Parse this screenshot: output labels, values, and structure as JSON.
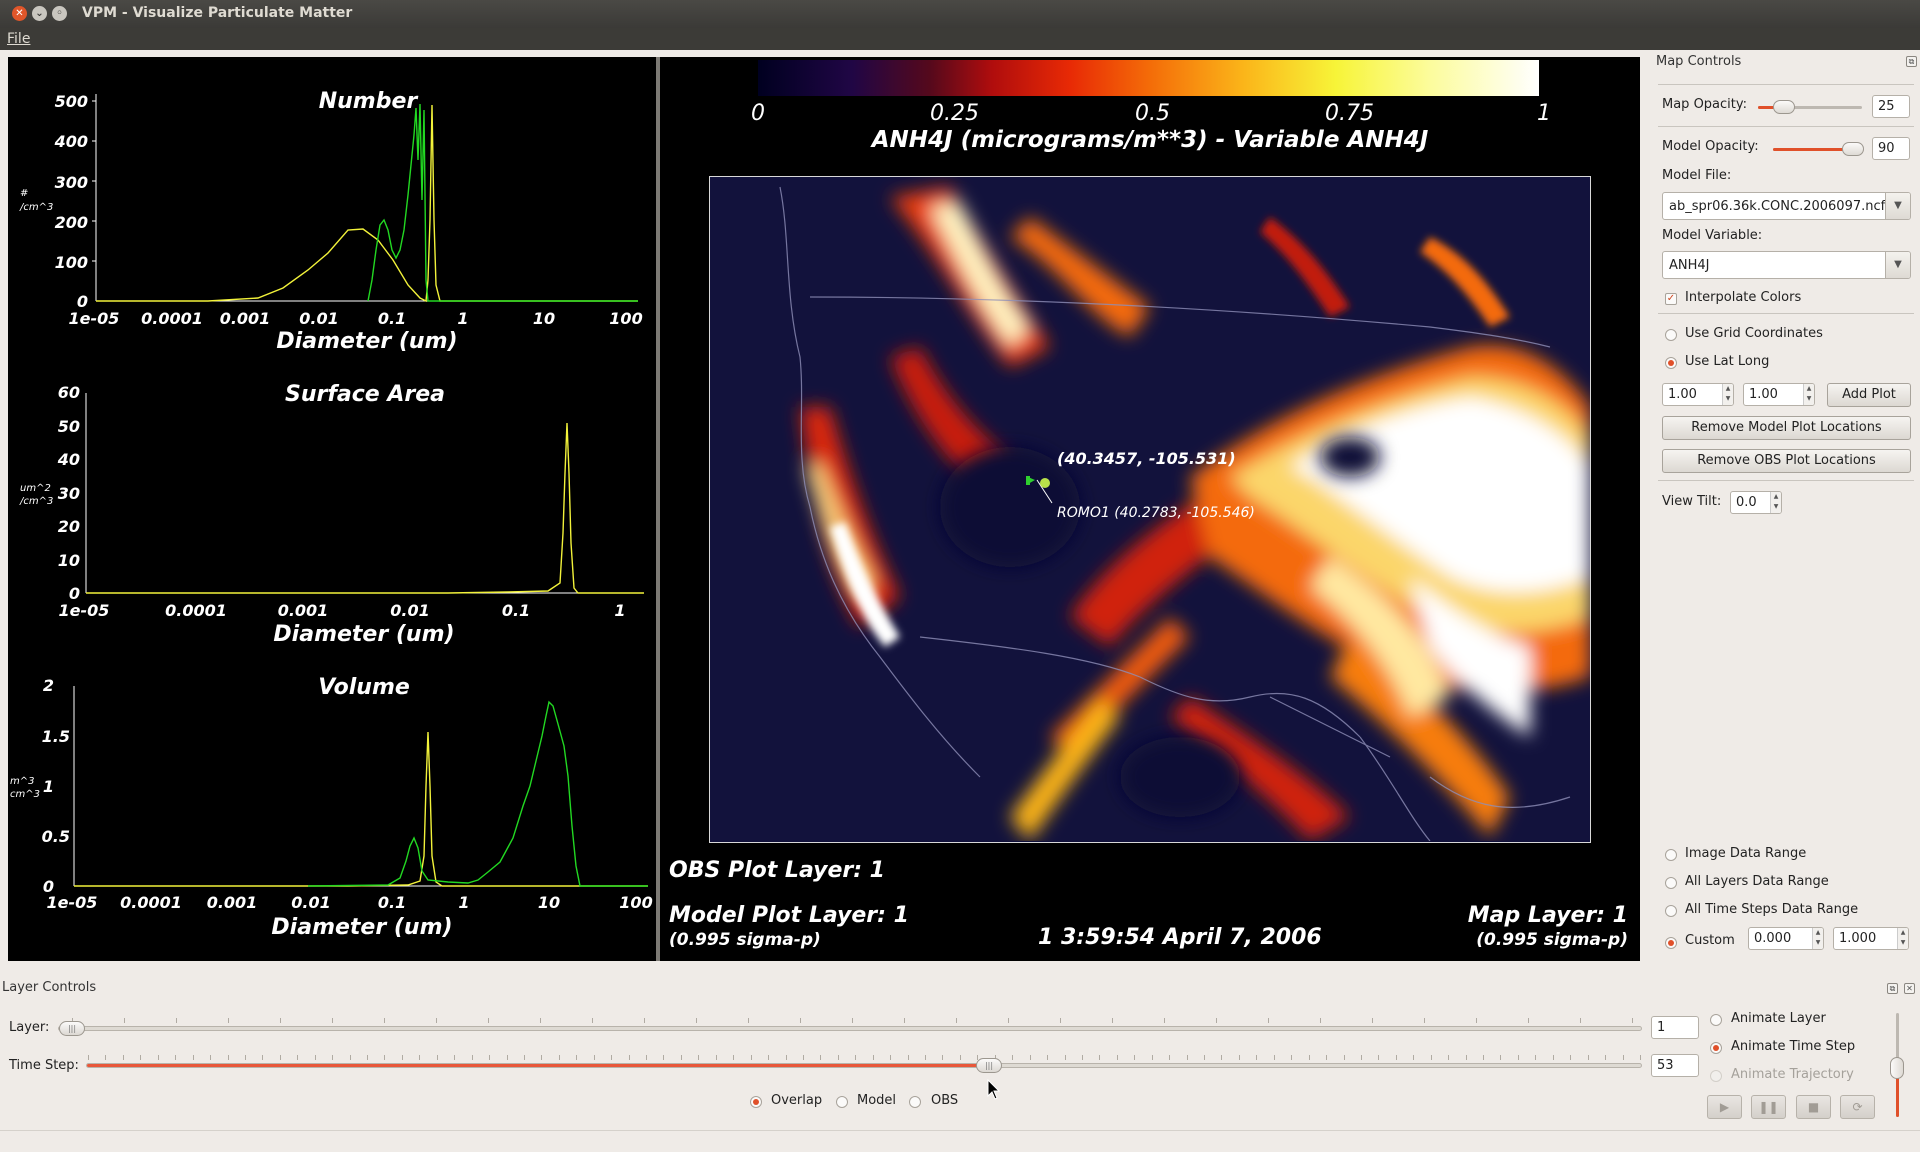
{
  "window": {
    "title": "VPM - Visualize Particulate Matter"
  },
  "menu": {
    "file": "File"
  },
  "plots": [
    {
      "title": "Number",
      "ylabel_line1": "#",
      "ylabel_line2": "/cm^3",
      "xlabel": "Diameter (um)",
      "yticks": [
        "500",
        "400",
        "300",
        "200",
        "100",
        "0"
      ],
      "xticks": [
        "1e-05",
        "0.0001",
        "0.001",
        "0.01",
        "0.1",
        "1",
        "10",
        "100"
      ]
    },
    {
      "title": "Surface Area",
      "ylabel_line1": "um^2",
      "ylabel_line2": "/cm^3",
      "xlabel": "Diameter (um)",
      "yticks": [
        "60",
        "50",
        "40",
        "30",
        "20",
        "10",
        "0"
      ],
      "xticks": [
        "1e-05",
        "0.0001",
        "0.001",
        "0.01",
        "0.1",
        "1"
      ]
    },
    {
      "title": "Volume",
      "ylabel_line1": "m^3",
      "ylabel_line2": "cm^3",
      "xlabel": "Diameter (um)",
      "yticks": [
        "2",
        "1.5",
        "1",
        "0.5",
        "0"
      ],
      "xticks": [
        "1e-05",
        "0.0001",
        "0.001",
        "0.01",
        "0.1",
        "1",
        "10",
        "100"
      ]
    }
  ],
  "map": {
    "colorbar_ticks": [
      "0",
      "0.25",
      "0.5",
      "0.75",
      "1"
    ],
    "title": "ANH4J (micrograms/m**3) - Variable ANH4J",
    "marker_label": "(40.3457, -105.531)",
    "station_label": "ROMO1 (40.2783, -105.546)",
    "obs_layer": "OBS Plot Layer: 1",
    "model_layer": "Model Plot Layer: 1",
    "model_sigma": "(0.995 sigma-p)",
    "timestamp": "1 3:59:54 April 7, 2006",
    "map_layer": "Map Layer: 1",
    "map_sigma": "(0.995 sigma-p)"
  },
  "map_controls": {
    "title": "Map Controls",
    "map_opacity_label": "Map Opacity:",
    "map_opacity_value": "25",
    "model_opacity_label": "Model Opacity:",
    "model_opacity_value": "90",
    "model_file_label": "Model File:",
    "model_file_value": "ab_spr06.36k.CONC.2006097.ncf",
    "model_variable_label": "Model Variable:",
    "model_variable_value": "ANH4J",
    "interpolate_colors": "Interpolate Colors",
    "use_grid_coords": "Use Grid Coordinates",
    "use_lat_long": "Use Lat Long",
    "lat_value": "1.00",
    "long_value": "1.00",
    "add_plot": "Add Plot",
    "remove_model_plots": "Remove Model Plot Locations",
    "remove_obs_plots": "Remove OBS Plot Locations",
    "view_tilt_label": "View Tilt:",
    "view_tilt_value": "0.0",
    "image_data_range": "Image Data Range",
    "all_layers_range": "All Layers Data Range",
    "all_time_steps_range": "All Time Steps Data Range",
    "custom": "Custom",
    "custom_min": "0.000",
    "custom_max": "1.000"
  },
  "layer_controls": {
    "title": "Layer Controls",
    "layer_label": "Layer:",
    "layer_value": "1",
    "time_step_label": "Time Step:",
    "time_step_value": "53",
    "time_step_fraction": 0.58,
    "overlap": "Overlap",
    "model": "Model",
    "obs": "OBS",
    "animate_layer": "Animate Layer",
    "animate_time_step": "Animate Time Step",
    "animate_trajectory": "Animate Trajectory"
  },
  "opacity": {
    "map_fraction": 0.25,
    "model_fraction": 0.9
  },
  "colors": {
    "accent": "#e0502a",
    "viz_background": "#000000",
    "model_curve": "#f2f23a",
    "obs_curve": "#22d822"
  }
}
